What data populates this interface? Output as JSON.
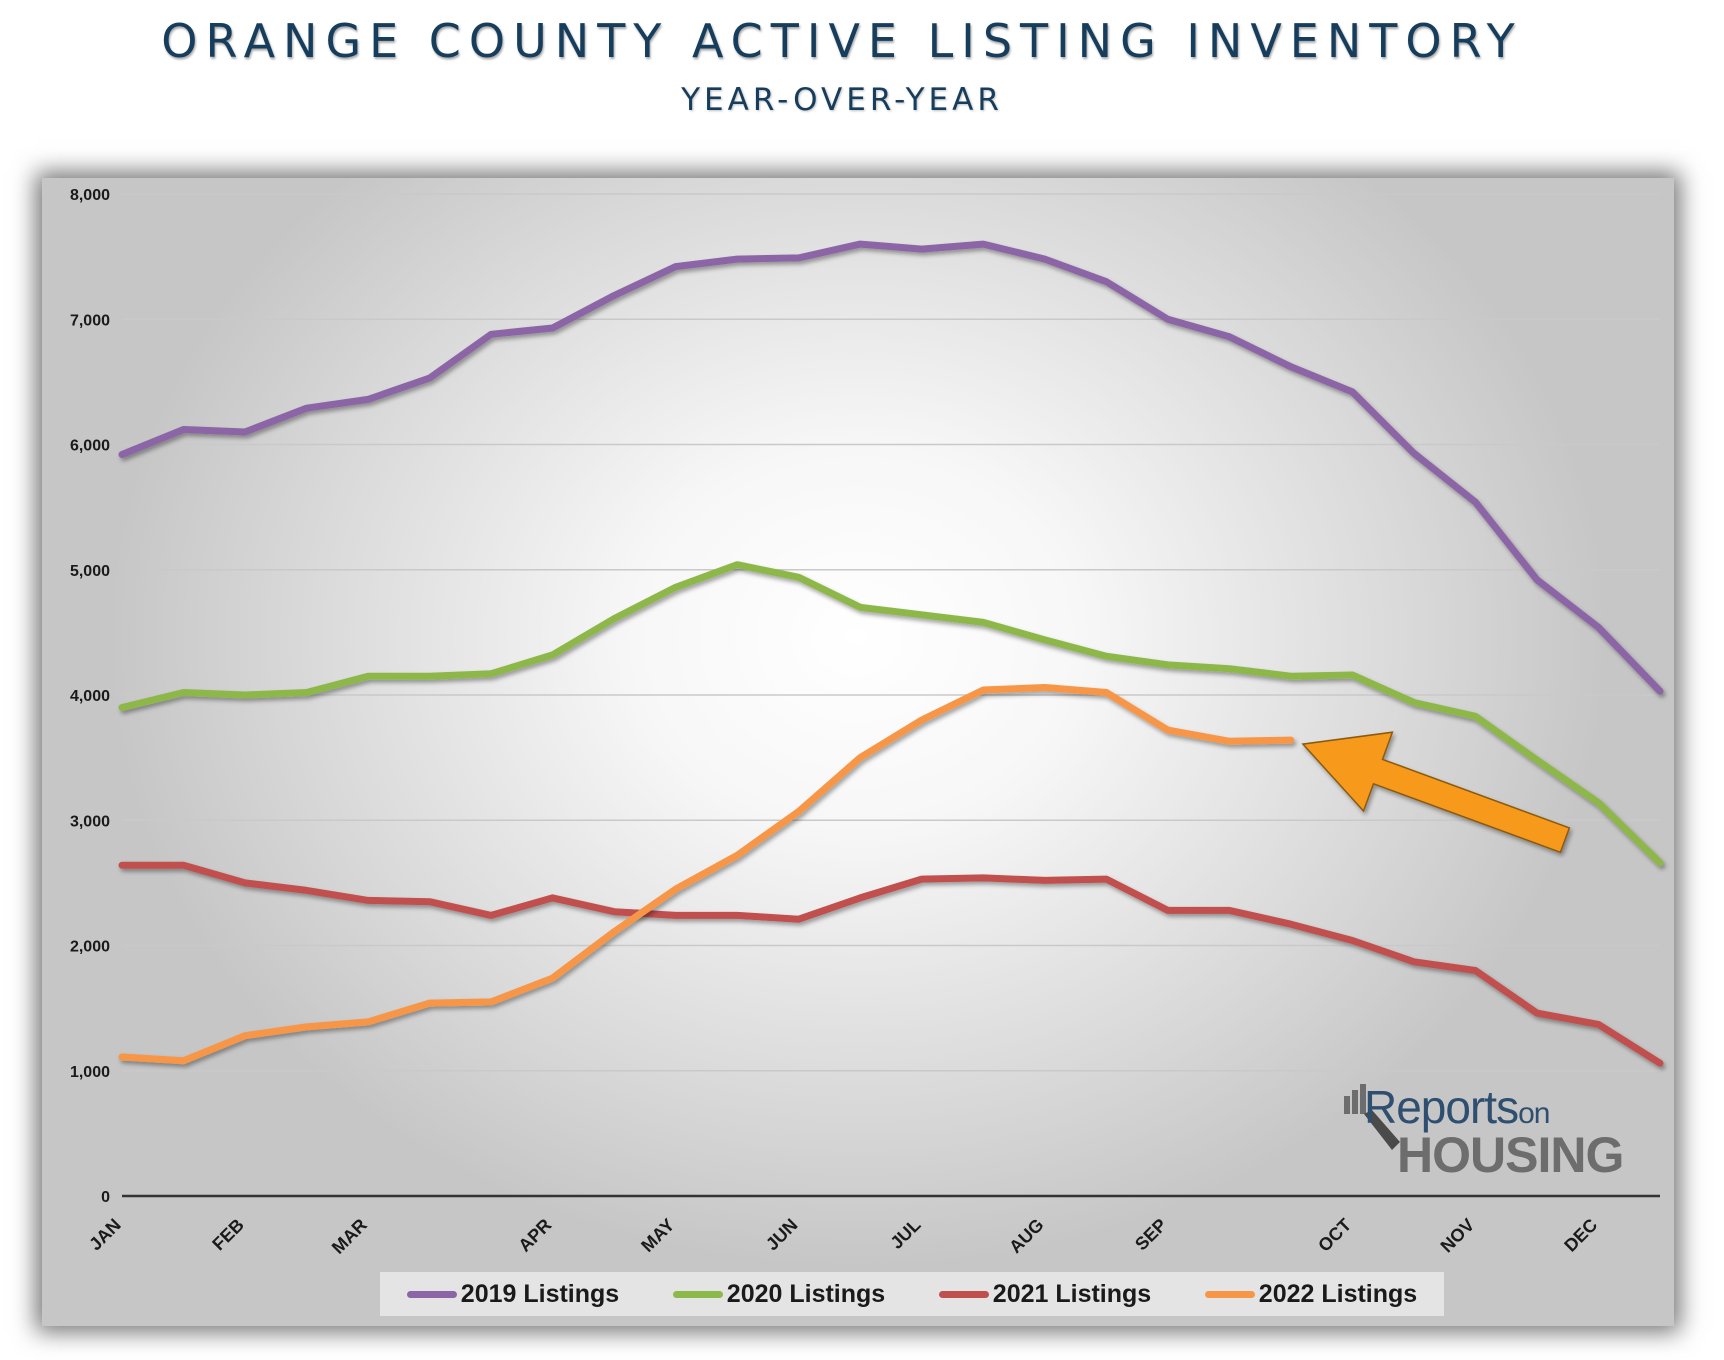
{
  "title": "ORANGE COUNTY ACTIVE LISTING INVENTORY",
  "subtitle": "YEAR-OVER-YEAR",
  "logo": {
    "line1": "Reports",
    "line1_small": "on",
    "line2": "HOUSING"
  },
  "colors": {
    "2019": "#8b65a6",
    "2020": "#8db84a",
    "2021": "#c0504d",
    "2022": "#f79646",
    "arrow": "#f79a1c"
  },
  "chart_data": {
    "type": "line",
    "title": "ORANGE COUNTY ACTIVE LISTING INVENTORY",
    "subtitle": "YEAR-OVER-YEAR",
    "xlabel": "",
    "ylabel": "",
    "ylim": [
      0,
      8000
    ],
    "yticks": [
      "0",
      "1,000",
      "2,000",
      "3,000",
      "4,000",
      "5,000",
      "6,000",
      "7,000",
      "8,000"
    ],
    "x_tick_labels": [
      "JAN",
      "FEB",
      "MAR",
      "APR",
      "MAY",
      "JUN",
      "JUL",
      "AUG",
      "SEP",
      "OCT",
      "NOV",
      "DEC"
    ],
    "x_tick_weeks": [
      0,
      2,
      4,
      7,
      9,
      11,
      13,
      15,
      17,
      20,
      22,
      24
    ],
    "x_points": 26,
    "grid": true,
    "legend_position": "bottom",
    "annotation": "arrow pointing to latest 2022 value",
    "series": [
      {
        "name": "2019 Listings",
        "values": [
          5920,
          6120,
          6100,
          6290,
          6360,
          6530,
          6880,
          6930,
          7190,
          7420,
          7480,
          7490,
          7600,
          7560,
          7600,
          7480,
          7300,
          7000,
          6860,
          6620,
          6420,
          5930,
          5540,
          4920,
          4540,
          4030
        ]
      },
      {
        "name": "2020 Listings",
        "values": [
          3900,
          4020,
          4000,
          4020,
          4150,
          4150,
          4170,
          4320,
          4610,
          4860,
          5040,
          4940,
          4700,
          4640,
          4580,
          4440,
          4310,
          4240,
          4210,
          4150,
          4160,
          3940,
          3830,
          3480,
          3140,
          2660
        ]
      },
      {
        "name": "2021 Listings",
        "values": [
          2640,
          2640,
          2500,
          2440,
          2360,
          2350,
          2240,
          2380,
          2270,
          2240,
          2240,
          2210,
          2380,
          2530,
          2540,
          2520,
          2530,
          2280,
          2280,
          2170,
          2040,
          1870,
          1800,
          1460,
          1370,
          1060
        ]
      },
      {
        "name": "2022 Listings",
        "values": [
          1110,
          1080,
          1280,
          1350,
          1390,
          1540,
          1550,
          1740,
          2110,
          2450,
          2720,
          3070,
          3500,
          3800,
          4040,
          4060,
          4020,
          3720,
          3630,
          3640,
          null,
          null,
          null,
          null,
          null,
          null
        ]
      }
    ]
  }
}
